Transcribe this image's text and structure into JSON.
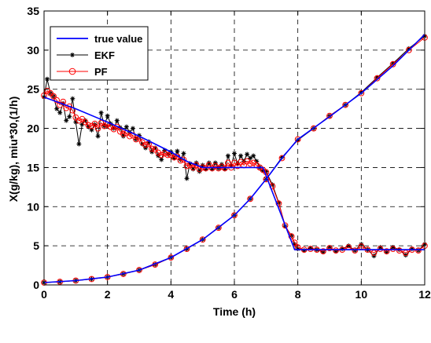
{
  "chart_data": {
    "type": "line",
    "xlabel": "Time (h)",
    "ylabel": "X(g/kg), miu*30,(1/h)",
    "xlim": [
      0,
      12
    ],
    "ylim": [
      0,
      35
    ],
    "xticks": [
      0,
      2,
      4,
      6,
      8,
      10,
      12
    ],
    "yticks": [
      0,
      5,
      10,
      15,
      20,
      25,
      30,
      35
    ],
    "grid": "dashed",
    "legend_position": "top-left",
    "colors": {
      "true_value": "#0000ff",
      "ekf": "#000000",
      "pf": "#ff0000"
    },
    "legend": [
      {
        "key": "true",
        "label": "true value"
      },
      {
        "key": "ekf",
        "label": "EKF"
      },
      {
        "key": "pf",
        "label": "PF"
      }
    ],
    "series": [
      {
        "name": "true value",
        "key": "true",
        "curves": [
          [
            [
              0,
              0.3
            ],
            [
              1,
              0.55
            ],
            [
              2,
              1.0
            ],
            [
              3,
              1.9
            ],
            [
              4,
              3.5
            ],
            [
              5,
              5.8
            ],
            [
              6,
              8.9
            ],
            [
              6.5,
              11.0
            ],
            [
              7,
              13.5
            ],
            [
              7.5,
              16.2
            ],
            [
              8,
              18.6
            ],
            [
              9,
              21.5
            ],
            [
              10,
              24.5
            ],
            [
              11,
              28.0
            ],
            [
              12,
              32.0
            ]
          ],
          [
            [
              0,
              24.0
            ],
            [
              1,
              22.5
            ],
            [
              2,
              20.8
            ],
            [
              3,
              19.0
            ],
            [
              4,
              17.0
            ],
            [
              4.5,
              15.8
            ],
            [
              5,
              15.0
            ],
            [
              6,
              15.0
            ],
            [
              6.9,
              15.0
            ],
            [
              7.9,
              4.5
            ],
            [
              8.5,
              4.5
            ],
            [
              10,
              4.5
            ],
            [
              12,
              4.5
            ]
          ]
        ]
      },
      {
        "name": "EKF",
        "key": "ekf",
        "curves": [
          [
            [
              0,
              0.3
            ],
            [
              0.5,
              0.4
            ],
            [
              1,
              0.55
            ],
            [
              1.5,
              0.75
            ],
            [
              2,
              1.0
            ],
            [
              2.5,
              1.4
            ],
            [
              3,
              1.9
            ],
            [
              3.5,
              2.6
            ],
            [
              4,
              3.5
            ],
            [
              4.5,
              4.6
            ],
            [
              5,
              5.8
            ],
            [
              5.5,
              7.3
            ],
            [
              6,
              8.9
            ],
            [
              6.5,
              11.0
            ],
            [
              7,
              13.5
            ],
            [
              7.5,
              16.3
            ],
            [
              8,
              18.5
            ],
            [
              8.5,
              20.0
            ],
            [
              9,
              21.6
            ],
            [
              9.5,
              23.0
            ],
            [
              10,
              24.6
            ],
            [
              10.5,
              26.5
            ],
            [
              11,
              28.3
            ],
            [
              11.5,
              30.2
            ],
            [
              12,
              31.8
            ]
          ],
          [
            [
              0,
              24.0
            ],
            [
              0.1,
              26.3
            ],
            [
              0.2,
              24.5
            ],
            [
              0.3,
              24.1
            ],
            [
              0.4,
              22.5
            ],
            [
              0.5,
              22.0
            ],
            [
              0.6,
              23.2
            ],
            [
              0.7,
              21.0
            ],
            [
              0.8,
              21.5
            ],
            [
              0.9,
              23.8
            ],
            [
              1.0,
              20.8
            ],
            [
              1.1,
              18.0
            ],
            [
              1.2,
              20.5
            ],
            [
              1.3,
              21.0
            ],
            [
              1.4,
              20.2
            ],
            [
              1.5,
              19.8
            ],
            [
              1.6,
              20.5
            ],
            [
              1.7,
              19.0
            ],
            [
              1.8,
              22.0
            ],
            [
              1.9,
              20.3
            ],
            [
              2.0,
              21.6
            ],
            [
              2.1,
              20.6
            ],
            [
              2.2,
              20.0
            ],
            [
              2.3,
              21.0
            ],
            [
              2.4,
              20.1
            ],
            [
              2.5,
              19.0
            ],
            [
              2.6,
              20.2
            ],
            [
              2.7,
              19.5
            ],
            [
              2.8,
              20.0
            ],
            [
              2.9,
              18.6
            ],
            [
              3.0,
              19.1
            ],
            [
              3.1,
              18.0
            ],
            [
              3.2,
              17.5
            ],
            [
              3.3,
              18.3
            ],
            [
              3.4,
              17.0
            ],
            [
              3.5,
              17.5
            ],
            [
              3.6,
              16.5
            ],
            [
              3.7,
              16.0
            ],
            [
              3.8,
              17.2
            ],
            [
              3.9,
              16.7
            ],
            [
              4.0,
              17.0
            ],
            [
              4.1,
              16.2
            ],
            [
              4.2,
              17.1
            ],
            [
              4.3,
              16.0
            ],
            [
              4.4,
              16.8
            ],
            [
              4.5,
              13.6
            ],
            [
              4.6,
              15.5
            ],
            [
              4.7,
              14.8
            ],
            [
              4.8,
              15.6
            ],
            [
              4.9,
              14.5
            ],
            [
              5.0,
              15.3
            ],
            [
              5.1,
              14.8
            ],
            [
              5.2,
              15.6
            ],
            [
              5.3,
              14.8
            ],
            [
              5.4,
              15.6
            ],
            [
              5.5,
              14.9
            ],
            [
              5.6,
              15.4
            ],
            [
              5.7,
              14.8
            ],
            [
              5.8,
              16.5
            ],
            [
              5.9,
              15.2
            ],
            [
              6.0,
              16.8
            ],
            [
              6.1,
              15.5
            ],
            [
              6.2,
              16.5
            ],
            [
              6.3,
              15.8
            ],
            [
              6.4,
              16.7
            ],
            [
              6.5,
              16.2
            ],
            [
              6.6,
              16.5
            ],
            [
              6.7,
              15.8
            ],
            [
              6.8,
              15.0
            ],
            [
              6.9,
              14.6
            ],
            [
              7.0,
              14.5
            ],
            [
              7.2,
              12.8
            ],
            [
              7.4,
              10.5
            ],
            [
              7.6,
              7.5
            ],
            [
              7.8,
              6.3
            ],
            [
              7.9,
              5.2
            ],
            [
              8.0,
              4.6
            ],
            [
              8.2,
              4.4
            ],
            [
              8.4,
              4.7
            ],
            [
              8.6,
              4.5
            ],
            [
              8.8,
              4.2
            ],
            [
              9.0,
              4.8
            ],
            [
              9.2,
              4.3
            ],
            [
              9.4,
              4.6
            ],
            [
              9.6,
              5.0
            ],
            [
              9.8,
              4.4
            ],
            [
              10.0,
              5.2
            ],
            [
              10.2,
              4.5
            ],
            [
              10.4,
              3.7
            ],
            [
              10.6,
              4.8
            ],
            [
              10.8,
              4.2
            ],
            [
              11.0,
              4.8
            ],
            [
              11.2,
              4.5
            ],
            [
              11.4,
              3.8
            ],
            [
              11.6,
              4.6
            ],
            [
              11.8,
              4.4
            ],
            [
              12.0,
              5.2
            ]
          ]
        ]
      },
      {
        "name": "PF",
        "key": "pf",
        "curves": [
          [
            [
              0,
              0.3
            ],
            [
              0.5,
              0.4
            ],
            [
              1,
              0.55
            ],
            [
              1.5,
              0.75
            ],
            [
              2,
              1.0
            ],
            [
              2.5,
              1.4
            ],
            [
              3,
              1.9
            ],
            [
              3.5,
              2.6
            ],
            [
              4,
              3.5
            ],
            [
              4.5,
              4.6
            ],
            [
              5,
              5.8
            ],
            [
              5.5,
              7.3
            ],
            [
              6,
              8.9
            ],
            [
              6.5,
              11.0
            ],
            [
              7,
              13.5
            ],
            [
              7.5,
              16.2
            ],
            [
              8,
              18.6
            ],
            [
              8.5,
              20.0
            ],
            [
              9,
              21.6
            ],
            [
              9.5,
              23.0
            ],
            [
              10,
              24.5
            ],
            [
              10.5,
              26.4
            ],
            [
              11,
              28.2
            ],
            [
              11.5,
              30.0
            ],
            [
              12,
              31.6
            ]
          ],
          [
            [
              0,
              24.2
            ],
            [
              0.1,
              24.8
            ],
            [
              0.2,
              24.5
            ],
            [
              0.3,
              24.1
            ],
            [
              0.4,
              23.6
            ],
            [
              0.5,
              23.0
            ],
            [
              0.6,
              23.4
            ],
            [
              0.7,
              22.6
            ],
            [
              0.8,
              22.8
            ],
            [
              0.9,
              22.3
            ],
            [
              1.0,
              21.4
            ],
            [
              1.1,
              21.0
            ],
            [
              1.2,
              21.2
            ],
            [
              1.3,
              20.8
            ],
            [
              1.4,
              20.4
            ],
            [
              1.5,
              20.3
            ],
            [
              1.6,
              20.6
            ],
            [
              1.7,
              20.0
            ],
            [
              1.8,
              20.7
            ],
            [
              1.9,
              20.3
            ],
            [
              2.0,
              20.5
            ],
            [
              2.1,
              20.2
            ],
            [
              2.2,
              19.9
            ],
            [
              2.3,
              20.2
            ],
            [
              2.4,
              19.6
            ],
            [
              2.5,
              19.3
            ],
            [
              2.6,
              19.4
            ],
            [
              2.7,
              19.0
            ],
            [
              2.8,
              19.1
            ],
            [
              2.9,
              18.6
            ],
            [
              3.0,
              18.7
            ],
            [
              3.1,
              18.2
            ],
            [
              3.2,
              17.9
            ],
            [
              3.3,
              18.0
            ],
            [
              3.4,
              17.4
            ],
            [
              3.5,
              17.3
            ],
            [
              3.6,
              16.9
            ],
            [
              3.7,
              16.6
            ],
            [
              3.8,
              16.8
            ],
            [
              3.9,
              16.6
            ],
            [
              4.0,
              16.6
            ],
            [
              4.1,
              16.3
            ],
            [
              4.2,
              16.4
            ],
            [
              4.3,
              15.9
            ],
            [
              4.4,
              16.0
            ],
            [
              4.5,
              15.2
            ],
            [
              4.6,
              15.3
            ],
            [
              4.7,
              15.0
            ],
            [
              4.8,
              15.3
            ],
            [
              4.9,
              14.8
            ],
            [
              5.0,
              15.0
            ],
            [
              5.1,
              14.9
            ],
            [
              5.2,
              15.3
            ],
            [
              5.3,
              14.9
            ],
            [
              5.4,
              15.2
            ],
            [
              5.5,
              14.9
            ],
            [
              5.6,
              15.1
            ],
            [
              5.7,
              14.9
            ],
            [
              5.8,
              15.6
            ],
            [
              5.9,
              15.0
            ],
            [
              6.0,
              15.6
            ],
            [
              6.1,
              15.2
            ],
            [
              6.2,
              15.7
            ],
            [
              6.3,
              15.3
            ],
            [
              6.4,
              15.8
            ],
            [
              6.5,
              15.5
            ],
            [
              6.6,
              15.6
            ],
            [
              6.7,
              15.3
            ],
            [
              6.8,
              15.0
            ],
            [
              6.9,
              14.7
            ],
            [
              7.0,
              14.4
            ],
            [
              7.2,
              12.6
            ],
            [
              7.4,
              10.4
            ],
            [
              7.6,
              7.6
            ],
            [
              7.8,
              6.2
            ],
            [
              7.9,
              5.4
            ],
            [
              8.0,
              4.8
            ],
            [
              8.2,
              4.5
            ],
            [
              8.4,
              4.6
            ],
            [
              8.6,
              4.5
            ],
            [
              8.8,
              4.3
            ],
            [
              9.0,
              4.7
            ],
            [
              9.2,
              4.4
            ],
            [
              9.4,
              4.5
            ],
            [
              9.6,
              4.8
            ],
            [
              9.8,
              4.4
            ],
            [
              10.0,
              4.9
            ],
            [
              10.2,
              4.5
            ],
            [
              10.4,
              4.1
            ],
            [
              10.6,
              4.6
            ],
            [
              10.8,
              4.3
            ],
            [
              11.0,
              4.6
            ],
            [
              11.2,
              4.4
            ],
            [
              11.4,
              4.1
            ],
            [
              11.6,
              4.5
            ],
            [
              11.8,
              4.4
            ],
            [
              12.0,
              5.0
            ]
          ]
        ]
      }
    ]
  }
}
